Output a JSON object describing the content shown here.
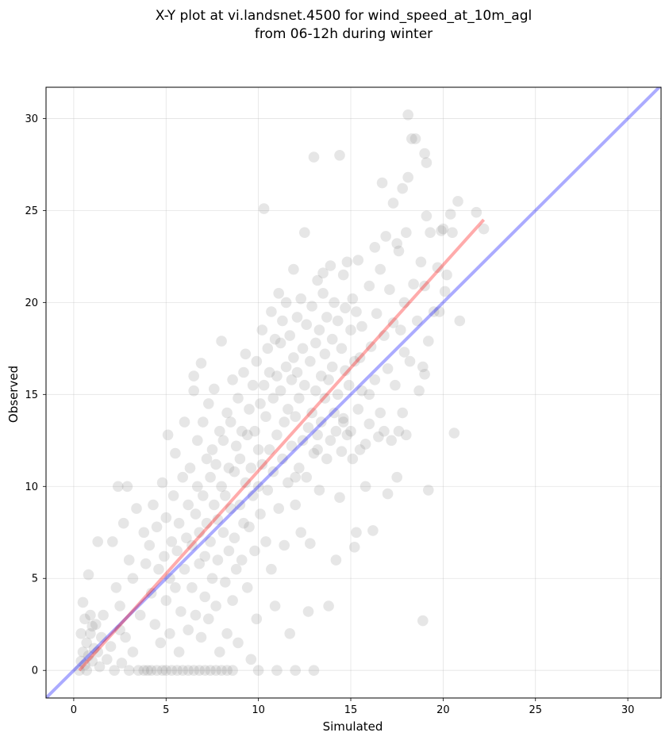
{
  "chart_data": {
    "type": "scatter",
    "title_lines": [
      "X-Y plot at vi.landsnet.4500 for wind_speed_at_10m_agl",
      "from 06-12h during winter"
    ],
    "xlabel": "Simulated",
    "ylabel": "Observed",
    "xlim": [
      -1.5,
      31.8
    ],
    "ylim": [
      -1.5,
      31.7
    ],
    "xticks": [
      0,
      5,
      10,
      15,
      20,
      25,
      30
    ],
    "yticks": [
      0,
      5,
      10,
      15,
      20,
      25,
      30
    ],
    "grid": true,
    "point_color": "#808080",
    "point_opacity": 0.2,
    "reference_lines": [
      {
        "x": [
          -1.5,
          31.8
        ],
        "y": [
          -1.5,
          31.8
        ],
        "color": "#0000ff",
        "opacity": 0.33
      },
      {
        "x": [
          0.3,
          22.2
        ],
        "y": [
          0,
          24.5
        ],
        "color": "#ff0000",
        "opacity": 0.33
      }
    ],
    "points": [
      [
        0.3,
        0.0
      ],
      [
        0.4,
        0.5
      ],
      [
        0.5,
        1.0
      ],
      [
        0.6,
        0.3
      ],
      [
        0.7,
        1.5
      ],
      [
        0.8,
        0.8
      ],
      [
        0.9,
        2.0
      ],
      [
        1.0,
        0.5
      ],
      [
        1.1,
        1.2
      ],
      [
        0.6,
        2.8
      ],
      [
        0.9,
        3.0
      ],
      [
        0.8,
        5.2
      ],
      [
        0.5,
        3.7
      ],
      [
        1.2,
        2.5
      ],
      [
        1.3,
        1.0
      ],
      [
        1.4,
        0.2
      ],
      [
        1.5,
        1.8
      ],
      [
        1.6,
        3.0
      ],
      [
        1.3,
        7.0
      ],
      [
        1.0,
        2.4
      ],
      [
        0.4,
        2.0
      ],
      [
        0.7,
        0.0
      ],
      [
        1.8,
        0.6
      ],
      [
        2.0,
        1.3
      ],
      [
        2.2,
        0.0
      ],
      [
        2.5,
        2.2
      ],
      [
        2.6,
        0.4
      ],
      [
        2.8,
        1.8
      ],
      [
        3.0,
        0.0
      ],
      [
        3.2,
        1.0
      ],
      [
        2.4,
        10.0
      ],
      [
        2.9,
        10.0
      ],
      [
        2.1,
        7.0
      ],
      [
        2.7,
        8.0
      ],
      [
        2.3,
        4.5
      ],
      [
        2.5,
        3.5
      ],
      [
        3.0,
        6.0
      ],
      [
        3.2,
        5.0
      ],
      [
        3.5,
        0.0
      ],
      [
        3.6,
        3.0
      ],
      [
        3.4,
        8.8
      ],
      [
        3.8,
        7.5
      ],
      [
        3.8,
        0.0
      ],
      [
        4.0,
        0.0
      ],
      [
        4.2,
        0.0
      ],
      [
        4.5,
        0.0
      ],
      [
        4.8,
        0.0
      ],
      [
        5.0,
        0.0
      ],
      [
        5.3,
        0.0
      ],
      [
        5.6,
        0.0
      ],
      [
        5.9,
        0.0
      ],
      [
        6.2,
        0.0
      ],
      [
        6.5,
        0.0
      ],
      [
        6.8,
        0.0
      ],
      [
        7.1,
        0.0
      ],
      [
        7.4,
        0.0
      ],
      [
        7.7,
        0.0
      ],
      [
        8.0,
        0.0
      ],
      [
        8.3,
        0.0
      ],
      [
        8.6,
        0.0
      ],
      [
        3.9,
        5.8
      ],
      [
        4.1,
        6.8
      ],
      [
        4.2,
        4.2
      ],
      [
        4.3,
        9.0
      ],
      [
        4.4,
        2.5
      ],
      [
        4.5,
        7.8
      ],
      [
        4.6,
        5.5
      ],
      [
        4.7,
        1.5
      ],
      [
        4.8,
        10.2
      ],
      [
        4.9,
        6.2
      ],
      [
        5.0,
        3.8
      ],
      [
        5.0,
        8.3
      ],
      [
        5.1,
        12.8
      ],
      [
        5.2,
        5.0
      ],
      [
        5.2,
        2.0
      ],
      [
        5.3,
        7.0
      ],
      [
        5.4,
        9.5
      ],
      [
        5.5,
        4.5
      ],
      [
        5.5,
        11.8
      ],
      [
        5.6,
        6.5
      ],
      [
        5.7,
        1.0
      ],
      [
        5.7,
        8.0
      ],
      [
        5.8,
        3.2
      ],
      [
        5.9,
        10.5
      ],
      [
        6.0,
        5.5
      ],
      [
        6.0,
        13.5
      ],
      [
        6.1,
        7.2
      ],
      [
        6.2,
        2.2
      ],
      [
        6.2,
        9.0
      ],
      [
        6.3,
        11.0
      ],
      [
        6.4,
        4.5
      ],
      [
        6.4,
        6.8
      ],
      [
        6.5,
        15.2
      ],
      [
        6.5,
        16.0
      ],
      [
        6.6,
        8.5
      ],
      [
        6.6,
        3.0
      ],
      [
        6.7,
        10.0
      ],
      [
        6.7,
        12.5
      ],
      [
        6.8,
        5.8
      ],
      [
        6.8,
        7.5
      ],
      [
        6.9,
        1.8
      ],
      [
        6.9,
        16.7
      ],
      [
        7.0,
        9.5
      ],
      [
        7.0,
        13.5
      ],
      [
        7.1,
        6.2
      ],
      [
        7.1,
        4.0
      ],
      [
        7.2,
        11.5
      ],
      [
        7.2,
        8.0
      ],
      [
        7.3,
        14.5
      ],
      [
        7.3,
        2.8
      ],
      [
        7.4,
        10.5
      ],
      [
        7.4,
        7.0
      ],
      [
        7.5,
        12.0
      ],
      [
        7.5,
        5.0
      ],
      [
        7.6,
        9.0
      ],
      [
        7.6,
        15.3
      ],
      [
        7.7,
        3.5
      ],
      [
        7.7,
        11.2
      ],
      [
        7.8,
        8.2
      ],
      [
        7.8,
        6.0
      ],
      [
        7.9,
        13.0
      ],
      [
        7.9,
        1.0
      ],
      [
        8.0,
        10.0
      ],
      [
        8.0,
        17.9
      ],
      [
        8.1,
        7.5
      ],
      [
        8.1,
        12.5
      ],
      [
        8.2,
        4.8
      ],
      [
        8.2,
        9.5
      ],
      [
        8.3,
        14.0
      ],
      [
        8.3,
        2.0
      ],
      [
        8.4,
        11.0
      ],
      [
        8.4,
        6.5
      ],
      [
        8.5,
        13.5
      ],
      [
        8.5,
        8.8
      ],
      [
        8.6,
        15.8
      ],
      [
        8.6,
        3.8
      ],
      [
        8.7,
        10.8
      ],
      [
        8.7,
        7.2
      ],
      [
        8.8,
        12.2
      ],
      [
        8.8,
        5.5
      ],
      [
        8.9,
        14.8
      ],
      [
        8.9,
        1.5
      ],
      [
        9.0,
        9.0
      ],
      [
        9.0,
        11.5
      ],
      [
        9.1,
        13.0
      ],
      [
        9.1,
        6.0
      ],
      [
        9.2,
        16.2
      ],
      [
        9.2,
        8.0
      ],
      [
        9.3,
        10.2
      ],
      [
        9.3,
        17.2
      ],
      [
        9.4,
        12.8
      ],
      [
        9.4,
        4.5
      ],
      [
        9.5,
        14.2
      ],
      [
        9.5,
        7.8
      ],
      [
        9.6,
        11.0
      ],
      [
        9.6,
        0.6
      ],
      [
        9.7,
        15.5
      ],
      [
        9.7,
        9.5
      ],
      [
        9.8,
        13.0
      ],
      [
        9.8,
        6.5
      ],
      [
        9.9,
        16.8
      ],
      [
        9.9,
        2.8
      ],
      [
        10.0,
        12.0
      ],
      [
        10.0,
        10.0
      ],
      [
        10.0,
        0.0
      ],
      [
        10.1,
        14.5
      ],
      [
        10.1,
        8.5
      ],
      [
        10.2,
        18.5
      ],
      [
        10.2,
        11.2
      ],
      [
        10.3,
        25.1
      ],
      [
        10.3,
        15.5
      ],
      [
        10.4,
        7.0
      ],
      [
        10.4,
        13.8
      ],
      [
        10.5,
        17.5
      ],
      [
        10.5,
        9.8
      ],
      [
        10.6,
        16.2
      ],
      [
        10.6,
        12.0
      ],
      [
        10.7,
        19.5
      ],
      [
        10.7,
        5.5
      ],
      [
        10.8,
        14.8
      ],
      [
        10.8,
        10.8
      ],
      [
        10.9,
        18.0
      ],
      [
        10.9,
        3.5
      ],
      [
        11.0,
        16.0
      ],
      [
        11.0,
        12.8
      ],
      [
        11.0,
        0.0
      ],
      [
        11.1,
        20.5
      ],
      [
        11.1,
        8.8
      ],
      [
        11.2,
        15.2
      ],
      [
        11.2,
        17.8
      ],
      [
        11.3,
        11.5
      ],
      [
        11.3,
        19.0
      ],
      [
        11.4,
        13.5
      ],
      [
        11.4,
        6.8
      ],
      [
        11.5,
        16.5
      ],
      [
        11.5,
        20.0
      ],
      [
        11.6,
        10.2
      ],
      [
        11.6,
        14.2
      ],
      [
        11.7,
        18.2
      ],
      [
        11.7,
        2.0
      ],
      [
        11.8,
        15.8
      ],
      [
        11.8,
        12.2
      ],
      [
        11.9,
        21.8
      ],
      [
        11.9,
        17.0
      ],
      [
        12.0,
        13.8
      ],
      [
        12.0,
        9.0
      ],
      [
        12.0,
        0.0
      ],
      [
        12.1,
        19.2
      ],
      [
        12.1,
        16.2
      ],
      [
        12.2,
        11.0
      ],
      [
        12.2,
        14.8
      ],
      [
        12.3,
        20.2
      ],
      [
        12.3,
        7.5
      ],
      [
        12.4,
        17.5
      ],
      [
        12.4,
        12.5
      ],
      [
        12.5,
        23.8
      ],
      [
        12.5,
        15.5
      ],
      [
        12.6,
        10.5
      ],
      [
        12.6,
        18.8
      ],
      [
        12.7,
        13.2
      ],
      [
        12.7,
        3.2
      ],
      [
        12.8,
        16.8
      ],
      [
        12.8,
        6.9
      ],
      [
        12.9,
        19.8
      ],
      [
        12.9,
        14.0
      ],
      [
        13.0,
        27.9
      ],
      [
        13.0,
        11.8
      ],
      [
        13.0,
        0.0
      ],
      [
        13.1,
        17.8
      ],
      [
        13.1,
        15.2
      ],
      [
        13.2,
        21.2
      ],
      [
        13.2,
        12.8
      ],
      [
        13.3,
        18.5
      ],
      [
        13.3,
        9.8
      ],
      [
        13.4,
        16.0
      ],
      [
        13.4,
        13.5
      ],
      [
        13.5,
        20.5
      ],
      [
        13.5,
        21.6
      ],
      [
        13.6,
        14.8
      ],
      [
        13.6,
        17.2
      ],
      [
        13.7,
        11.5
      ],
      [
        13.7,
        19.2
      ],
      [
        13.8,
        15.8
      ],
      [
        13.8,
        3.5
      ],
      [
        13.9,
        22.0
      ],
      [
        13.9,
        12.5
      ],
      [
        14.0,
        18.0
      ],
      [
        14.0,
        16.5
      ],
      [
        14.1,
        14.0
      ],
      [
        14.1,
        20.0
      ],
      [
        14.2,
        13.0
      ],
      [
        14.2,
        6.0
      ],
      [
        14.3,
        19.0
      ],
      [
        14.3,
        15.0
      ],
      [
        14.4,
        28.0
      ],
      [
        14.4,
        9.4
      ],
      [
        14.5,
        17.5
      ],
      [
        14.5,
        11.9
      ],
      [
        14.6,
        21.5
      ],
      [
        14.6,
        13.7
      ],
      [
        14.7,
        16.3
      ],
      [
        14.7,
        19.7
      ],
      [
        14.8,
        22.2
      ],
      [
        14.8,
        12.8
      ],
      [
        14.9,
        15.5
      ],
      [
        15.0,
        18.5
      ],
      [
        15.0,
        13.0
      ],
      [
        15.1,
        20.2
      ],
      [
        15.1,
        11.5
      ],
      [
        15.2,
        16.8
      ],
      [
        15.2,
        6.7
      ],
      [
        15.3,
        19.5
      ],
      [
        15.3,
        7.5
      ],
      [
        15.4,
        22.3
      ],
      [
        15.4,
        14.2
      ],
      [
        15.5,
        17.0
      ],
      [
        15.5,
        12.0
      ],
      [
        15.6,
        18.7
      ],
      [
        15.6,
        15.2
      ],
      [
        15.8,
        10.0
      ],
      [
        15.8,
        12.3
      ],
      [
        16.0,
        20.9
      ],
      [
        16.0,
        13.4
      ],
      [
        16.1,
        17.6
      ],
      [
        16.2,
        7.6
      ],
      [
        16.3,
        23.0
      ],
      [
        16.3,
        15.8
      ],
      [
        16.4,
        19.4
      ],
      [
        16.5,
        12.7
      ],
      [
        16.6,
        21.8
      ],
      [
        16.6,
        14.0
      ],
      [
        16.7,
        26.5
      ],
      [
        16.8,
        18.2
      ],
      [
        16.8,
        13.0
      ],
      [
        16.9,
        23.6
      ],
      [
        17.0,
        9.6
      ],
      [
        17.0,
        16.4
      ],
      [
        17.1,
        20.7
      ],
      [
        17.2,
        12.5
      ],
      [
        17.3,
        25.4
      ],
      [
        17.3,
        18.9
      ],
      [
        17.4,
        15.5
      ],
      [
        17.5,
        23.2
      ],
      [
        17.5,
        10.5
      ],
      [
        17.6,
        22.8
      ],
      [
        17.6,
        13.0
      ],
      [
        17.7,
        18.5
      ],
      [
        17.8,
        26.2
      ],
      [
        17.8,
        14.0
      ],
      [
        17.9,
        20.0
      ],
      [
        18.0,
        12.8
      ],
      [
        18.0,
        23.8
      ],
      [
        18.1,
        26.8
      ],
      [
        18.1,
        30.2
      ],
      [
        18.2,
        16.8
      ],
      [
        18.3,
        28.9
      ],
      [
        18.4,
        21.0
      ],
      [
        18.5,
        28.9
      ],
      [
        18.6,
        19.0
      ],
      [
        18.7,
        15.2
      ],
      [
        18.8,
        22.2
      ],
      [
        18.9,
        16.5
      ],
      [
        18.9,
        2.7
      ],
      [
        19.0,
        28.1
      ],
      [
        19.0,
        20.9
      ],
      [
        19.1,
        24.7
      ],
      [
        19.1,
        27.6
      ],
      [
        19.2,
        9.8
      ],
      [
        19.2,
        17.9
      ],
      [
        19.3,
        23.8
      ],
      [
        19.5,
        19.5
      ],
      [
        19.7,
        21.9
      ],
      [
        19.8,
        19.5
      ],
      [
        19.9,
        23.9
      ],
      [
        20.0,
        24.0
      ],
      [
        20.1,
        20.6
      ],
      [
        20.2,
        21.5
      ],
      [
        20.4,
        24.8
      ],
      [
        20.5,
        23.8
      ],
      [
        20.6,
        12.9
      ],
      [
        20.8,
        25.5
      ],
      [
        20.9,
        19.0
      ],
      [
        21.8,
        24.9
      ],
      [
        22.2,
        24.0
      ],
      [
        19.0,
        16.1
      ],
      [
        17.9,
        17.3
      ],
      [
        16.0,
        15.0
      ],
      [
        14.6,
        13.5
      ],
      [
        13.2,
        12.0
      ],
      [
        12.0,
        10.5
      ]
    ]
  }
}
